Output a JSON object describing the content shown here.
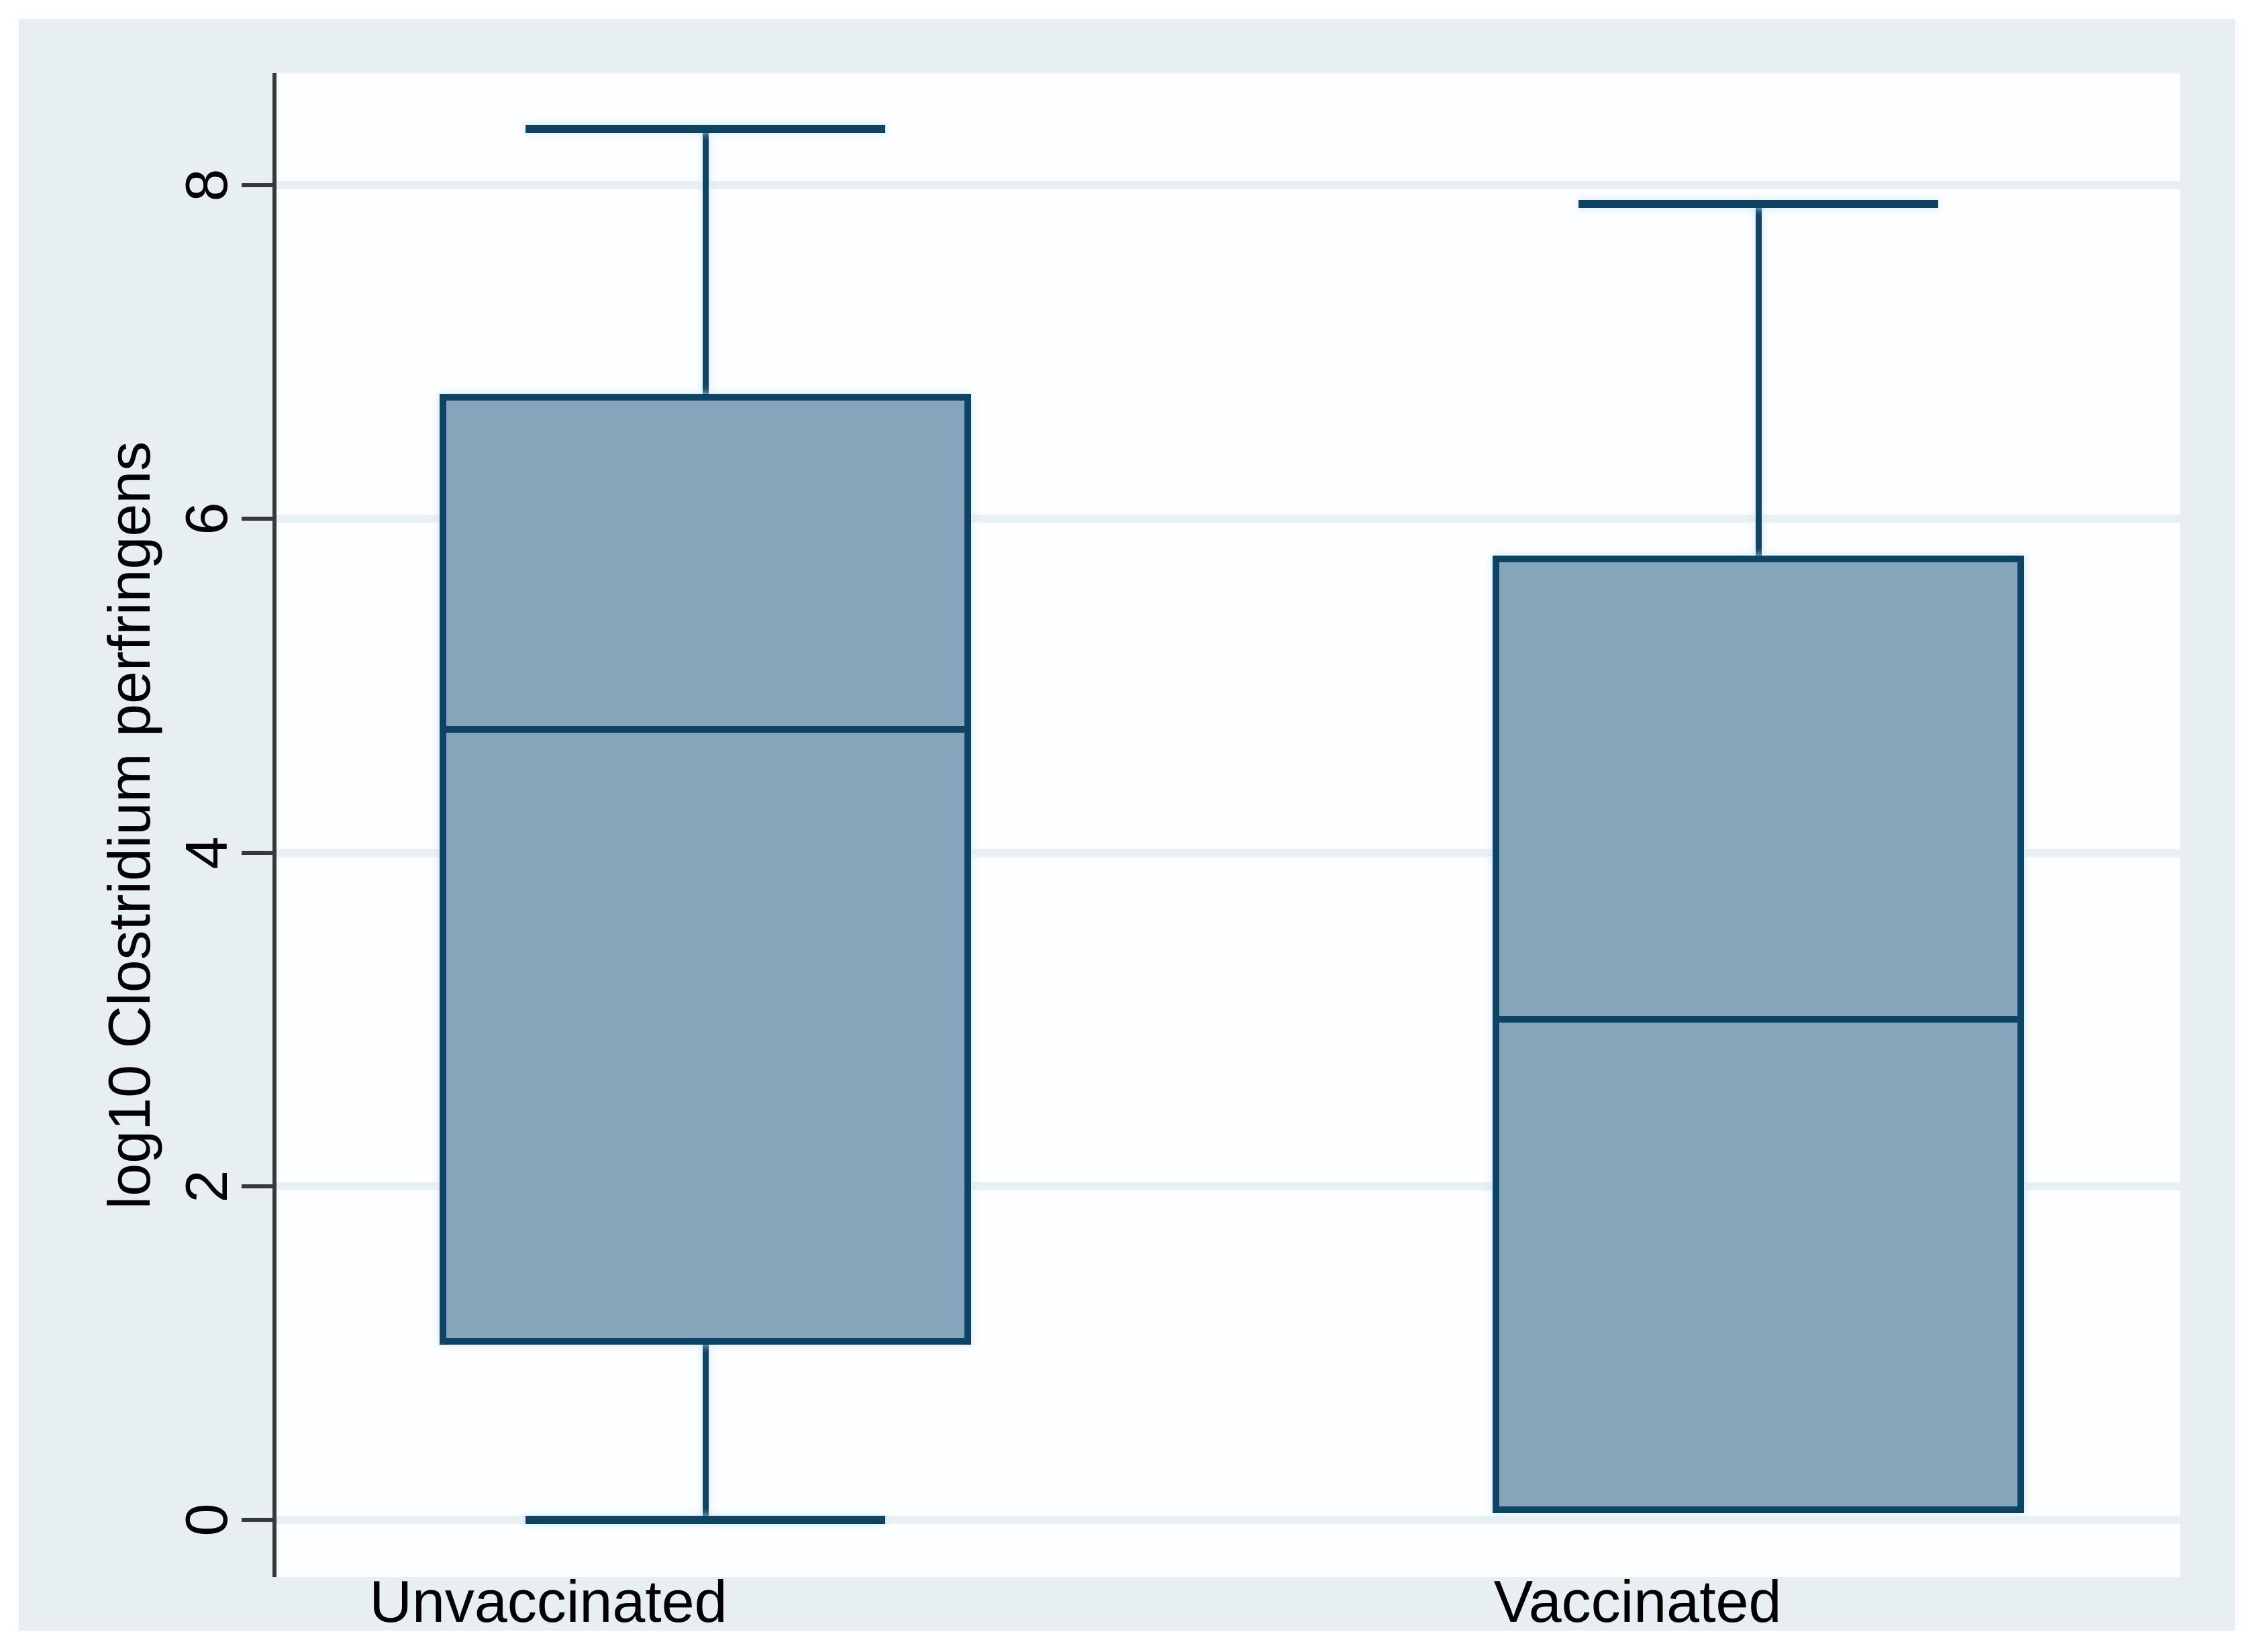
{
  "chart_data": {
    "type": "box",
    "title": "",
    "ylabel": "log10 Clostridium perfringens",
    "xlabel": "",
    "categories": [
      "Unvaccinated",
      "Vaccinated"
    ],
    "yticks": [
      0,
      2,
      4,
      6,
      8
    ],
    "ylim": [
      -0.35,
      8.67
    ],
    "grid": "horizontal-gridlines-on",
    "legend": "none",
    "series": [
      {
        "name": "Unvaccinated",
        "min": 0.0,
        "q1": 1.05,
        "median": 4.74,
        "q3": 6.75,
        "max": 8.34
      },
      {
        "name": "Vaccinated",
        "min": 0.04,
        "q1": 0.04,
        "median": 3.0,
        "q3": 5.78,
        "max": 7.89
      }
    ],
    "colors": {
      "box_fill": "#85a5ba",
      "box_stroke": "#0d4365",
      "axis": "#35393c",
      "gridline": "#e9f0f1",
      "figure_bg": "#e7eff2",
      "plot_bg": "#fdfeff",
      "text": "#000000"
    }
  }
}
